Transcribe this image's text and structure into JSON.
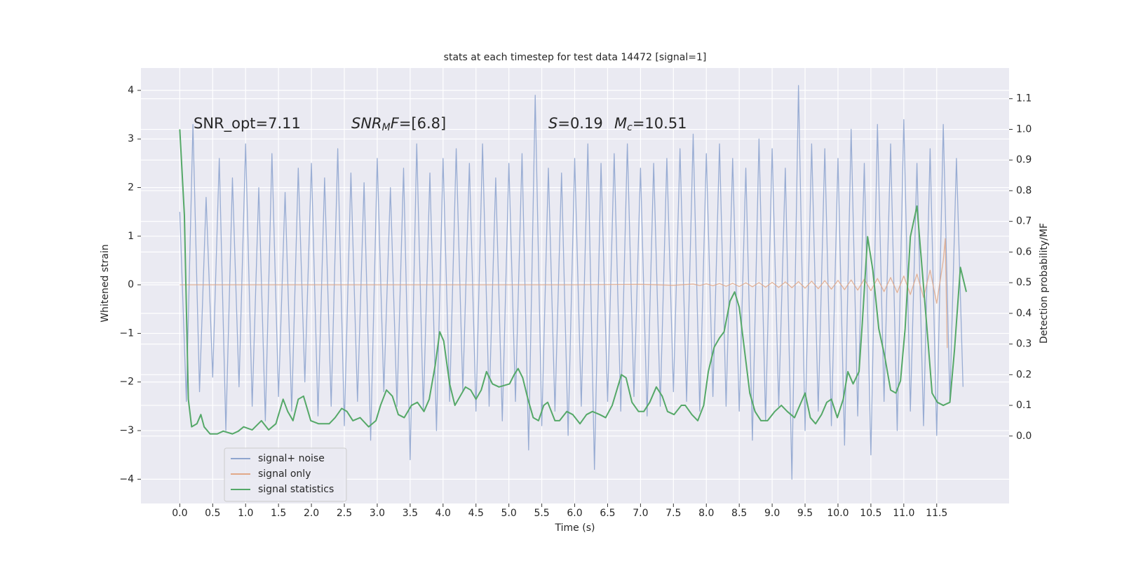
{
  "chart_data": {
    "type": "line",
    "title": "stats at each timestep for test data 14472 [signal=1]",
    "xlabel": "Time (s)",
    "ylabel": "Whitened strain",
    "y2label": "Detection probability/MF",
    "xlim": [
      -0.59,
      12.6
    ],
    "ylim": [
      -4.5,
      4.46
    ],
    "y2lim": [
      -0.22,
      1.2
    ],
    "grid": true,
    "legend": "lower left",
    "xticks": [
      {
        "value": 0,
        "label": "0.0"
      },
      {
        "value": 0.5,
        "label": "0.5"
      },
      {
        "value": 1,
        "label": "1.0"
      },
      {
        "value": 1.5,
        "label": "1.5"
      },
      {
        "value": 2,
        "label": "2.0"
      },
      {
        "value": 2.5,
        "label": "2.5"
      },
      {
        "value": 3,
        "label": "3.0"
      },
      {
        "value": 3.5,
        "label": "3.5"
      },
      {
        "value": 4,
        "label": "4.0"
      },
      {
        "value": 4.5,
        "label": "4.5"
      },
      {
        "value": 5,
        "label": "5.0"
      },
      {
        "value": 5.5,
        "label": "5.5"
      },
      {
        "value": 6,
        "label": "6.0"
      },
      {
        "value": 6.5,
        "label": "6.5"
      },
      {
        "value": 7,
        "label": "7.0"
      },
      {
        "value": 7.5,
        "label": "7.5"
      },
      {
        "value": 8,
        "label": "8.0"
      },
      {
        "value": 8.5,
        "label": "8.5"
      },
      {
        "value": 9,
        "label": "9.0"
      },
      {
        "value": 9.5,
        "label": "9.5"
      },
      {
        "value": 10,
        "label": "10.0"
      },
      {
        "value": 10.5,
        "label": "10.5"
      },
      {
        "value": 11,
        "label": "11.0"
      },
      {
        "value": 11.5,
        "label": "11.5"
      }
    ],
    "yticks": [
      {
        "value": -4,
        "label": "−4"
      },
      {
        "value": -3,
        "label": "−3"
      },
      {
        "value": -2,
        "label": "−2"
      },
      {
        "value": -1,
        "label": "−1"
      },
      0,
      1,
      2,
      3,
      4
    ],
    "y2ticks": [
      {
        "value": 0,
        "label": "0.0"
      },
      0.1,
      0.2,
      0.3,
      0.4,
      0.5,
      0.6,
      0.7,
      0.8,
      0.9,
      {
        "value": 1,
        "label": "1.0"
      },
      1.1
    ],
    "annotations": [
      {
        "segments": [
          {
            "text": "SNR_opt=7.11"
          }
        ]
      },
      {
        "segments": [
          {
            "text": "SNR",
            "italic": true
          },
          {
            "text": "M",
            "italic": true,
            "sub": true
          },
          {
            "text": "F",
            "italic": true
          },
          {
            "text": "=[6.8]"
          }
        ]
      },
      {
        "segments": [
          {
            "text": "S",
            "italic": true
          },
          {
            "text": "=0.19"
          }
        ]
      },
      {
        "segments": [
          {
            "text": "M",
            "italic": true
          },
          {
            "text": "c",
            "italic": true,
            "sub": true
          },
          {
            "text": "=10.51"
          }
        ]
      }
    ],
    "series": [
      {
        "name": "signal+ noise",
        "color": "#8fa5cf",
        "axis": "y",
        "x": [
          0,
          0.1,
          0.2,
          0.3,
          0.4,
          0.5,
          0.6,
          0.7,
          0.8,
          0.9,
          1,
          1.1,
          1.2,
          1.3,
          1.4,
          1.5,
          1.6,
          1.7,
          1.8,
          1.9,
          2,
          2.1,
          2.2,
          2.3,
          2.4,
          2.5,
          2.6,
          2.7,
          2.8,
          2.9,
          3,
          3.1,
          3.2,
          3.3,
          3.4,
          3.5,
          3.6,
          3.7,
          3.8,
          3.9,
          4,
          4.1,
          4.2,
          4.3,
          4.4,
          4.5,
          4.6,
          4.7,
          4.8,
          4.9,
          5,
          5.1,
          5.2,
          5.3,
          5.4,
          5.5,
          5.6,
          5.7,
          5.8,
          5.9,
          6,
          6.1,
          6.2,
          6.3,
          6.4,
          6.5,
          6.6,
          6.7,
          6.8,
          6.9,
          7,
          7.1,
          7.2,
          7.3,
          7.4,
          7.5,
          7.6,
          7.7,
          7.8,
          7.9,
          8,
          8.1,
          8.2,
          8.3,
          8.4,
          8.5,
          8.6,
          8.7,
          8.8,
          8.9,
          9,
          9.1,
          9.2,
          9.3,
          9.4,
          9.5,
          9.6,
          9.7,
          9.8,
          9.9,
          10,
          10.1,
          10.2,
          10.3,
          10.4,
          10.5,
          10.6,
          10.7,
          10.8,
          10.9,
          11,
          11.1,
          11.2,
          11.3,
          11.4,
          11.5,
          11.6,
          11.7,
          11.8,
          11.9
        ],
        "values": [
          1.5,
          -2.4,
          3.3,
          -2.2,
          1.8,
          -1.9,
          2.6,
          -3.0,
          2.2,
          -2.1,
          2.9,
          -2.5,
          2.0,
          -2.8,
          2.7,
          -2.3,
          1.9,
          -2.6,
          2.4,
          -2.0,
          2.5,
          -2.7,
          2.2,
          -2.5,
          2.8,
          -2.9,
          2.3,
          -2.4,
          2.1,
          -3.2,
          2.6,
          -2.2,
          2.0,
          -2.5,
          2.4,
          -3.6,
          2.9,
          -2.6,
          2.3,
          -3.0,
          2.6,
          -2.4,
          2.8,
          -2.2,
          2.5,
          -2.6,
          2.9,
          -2.5,
          2.2,
          -2.8,
          2.5,
          -2.4,
          2.7,
          -3.4,
          3.9,
          -2.9,
          2.4,
          -2.6,
          2.3,
          -3.1,
          2.6,
          -2.5,
          2.9,
          -3.8,
          2.5,
          -2.4,
          2.7,
          -2.6,
          2.9,
          -2.3,
          2.4,
          -2.7,
          2.5,
          -2.5,
          2.6,
          -2.2,
          2.8,
          -2.4,
          3.1,
          -2.6,
          2.7,
          -2.3,
          2.9,
          -2.5,
          2.6,
          -2.6,
          2.4,
          -3.2,
          3.0,
          -2.8,
          2.8,
          -2.5,
          2.4,
          -4.0,
          4.1,
          -3.0,
          2.9,
          -2.6,
          2.8,
          -2.9,
          2.6,
          -3.3,
          3.2,
          -2.7,
          2.5,
          -3.5,
          3.3,
          -2.4,
          2.9,
          -3.0,
          3.4,
          -2.6,
          2.5,
          -2.9,
          2.8,
          -3.1,
          3.3,
          -2.4,
          2.6,
          -2.1
        ]
      },
      {
        "name": "signal only",
        "color": "#e1a888",
        "axis": "y",
        "x": [
          0,
          2,
          4,
          6,
          7,
          7.5,
          7.8,
          7.9,
          8,
          8.1,
          8.2,
          8.3,
          8.4,
          8.5,
          8.6,
          8.7,
          8.8,
          8.9,
          9,
          9.1,
          9.2,
          9.3,
          9.4,
          9.5,
          9.6,
          9.7,
          9.8,
          9.9,
          10,
          10.1,
          10.2,
          10.3,
          10.4,
          10.5,
          10.6,
          10.7,
          10.8,
          10.9,
          11,
          11.1,
          11.2,
          11.3,
          11.4,
          11.5,
          11.6,
          11.63,
          11.66
        ],
        "values": [
          0,
          0,
          0,
          0,
          0.01,
          -0.01,
          0.015,
          -0.015,
          0.02,
          -0.02,
          0.025,
          -0.03,
          0.03,
          -0.035,
          0.04,
          -0.04,
          0.045,
          -0.05,
          0.05,
          -0.055,
          0.06,
          -0.06,
          0.065,
          -0.07,
          0.075,
          -0.08,
          0.085,
          -0.09,
          0.09,
          -0.1,
          0.1,
          -0.11,
          0.115,
          -0.12,
          0.13,
          -0.14,
          0.15,
          -0.16,
          0.18,
          -0.2,
          0.22,
          -0.26,
          0.3,
          -0.38,
          0.5,
          0.95,
          -1.3
        ]
      },
      {
        "name": "signal statistics",
        "color": "#55a868",
        "axis": "y2",
        "x": [
          0,
          0.07,
          0.13,
          0.18,
          0.26,
          0.32,
          0.37,
          0.46,
          0.57,
          0.66,
          0.8,
          0.89,
          0.97,
          1.1,
          1.24,
          1.35,
          1.46,
          1.57,
          1.64,
          1.72,
          1.8,
          1.88,
          1.99,
          2.11,
          2.27,
          2.36,
          2.46,
          2.54,
          2.63,
          2.74,
          2.87,
          2.98,
          3.05,
          3.14,
          3.23,
          3.32,
          3.41,
          3.52,
          3.61,
          3.71,
          3.79,
          3.88,
          3.95,
          4.01,
          4.1,
          4.18,
          4.26,
          4.34,
          4.42,
          4.5,
          4.58,
          4.66,
          4.75,
          4.85,
          5.01,
          5.08,
          5.14,
          5.21,
          5.29,
          5.37,
          5.45,
          5.53,
          5.59,
          5.7,
          5.77,
          5.88,
          5.97,
          6.08,
          6.18,
          6.27,
          6.38,
          6.47,
          6.57,
          6.64,
          6.71,
          6.78,
          6.87,
          6.97,
          7.05,
          7.14,
          7.24,
          7.33,
          7.41,
          7.51,
          7.62,
          7.68,
          7.78,
          7.87,
          7.96,
          8.03,
          8.12,
          8.2,
          8.27,
          8.36,
          8.43,
          8.5,
          8.58,
          8.66,
          8.74,
          8.83,
          8.93,
          9.04,
          9.14,
          9.23,
          9.34,
          9.42,
          9.5,
          9.58,
          9.66,
          9.75,
          9.83,
          9.9,
          9.99,
          10.08,
          10.15,
          10.23,
          10.32,
          10.37,
          10.45,
          10.53,
          10.62,
          10.71,
          10.8,
          10.88,
          10.95,
          11.02,
          11.1,
          11.2,
          11.28,
          11.36,
          11.43,
          11.51,
          11.6,
          11.7,
          11.77,
          11.86,
          11.95
        ],
        "values": [
          1.0,
          0.72,
          0.12,
          0.03,
          0.04,
          0.07,
          0.03,
          0.007,
          0.007,
          0.016,
          0.007,
          0.016,
          0.03,
          0.02,
          0.05,
          0.02,
          0.04,
          0.12,
          0.08,
          0.05,
          0.12,
          0.13,
          0.05,
          0.04,
          0.04,
          0.06,
          0.09,
          0.08,
          0.05,
          0.06,
          0.03,
          0.05,
          0.1,
          0.15,
          0.13,
          0.07,
          0.06,
          0.1,
          0.11,
          0.08,
          0.12,
          0.23,
          0.34,
          0.31,
          0.17,
          0.1,
          0.13,
          0.16,
          0.15,
          0.12,
          0.15,
          0.21,
          0.17,
          0.16,
          0.17,
          0.2,
          0.22,
          0.19,
          0.12,
          0.06,
          0.05,
          0.1,
          0.11,
          0.05,
          0.05,
          0.08,
          0.07,
          0.04,
          0.07,
          0.08,
          0.07,
          0.06,
          0.1,
          0.15,
          0.2,
          0.19,
          0.11,
          0.08,
          0.08,
          0.11,
          0.16,
          0.13,
          0.08,
          0.07,
          0.1,
          0.1,
          0.07,
          0.05,
          0.1,
          0.21,
          0.29,
          0.32,
          0.34,
          0.44,
          0.47,
          0.42,
          0.28,
          0.14,
          0.08,
          0.05,
          0.05,
          0.08,
          0.1,
          0.08,
          0.06,
          0.1,
          0.14,
          0.06,
          0.04,
          0.07,
          0.11,
          0.12,
          0.06,
          0.12,
          0.21,
          0.17,
          0.21,
          0.37,
          0.65,
          0.54,
          0.35,
          0.26,
          0.15,
          0.14,
          0.18,
          0.35,
          0.65,
          0.75,
          0.54,
          0.33,
          0.14,
          0.11,
          0.1,
          0.11,
          0.28,
          0.55,
          0.47
        ]
      }
    ]
  }
}
